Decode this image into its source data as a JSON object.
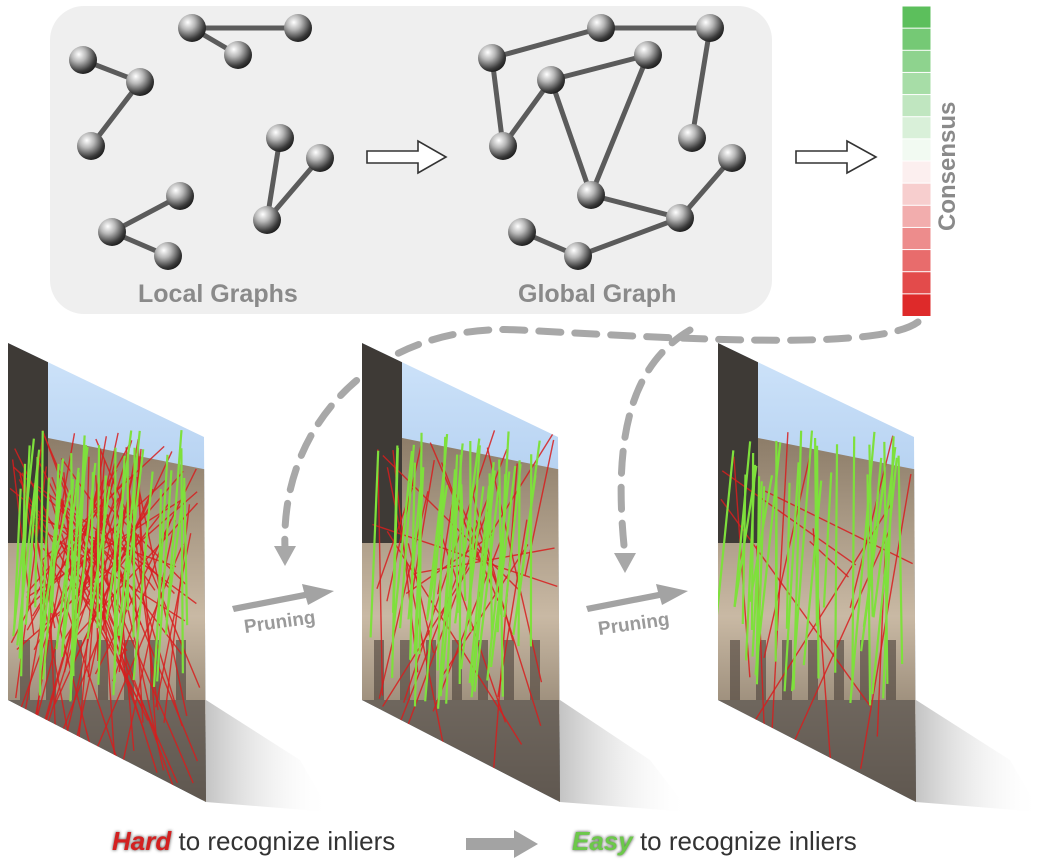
{
  "labels": {
    "local_graphs": "Local Graphs",
    "global_graph": "Global Graph",
    "consensus": "Consensus",
    "pruning_1": "Pruning",
    "pruning_2": "Pruning"
  },
  "caption": {
    "hard_word": "Hard",
    "hard_rest": " to recognize inliers",
    "easy_word": "Easy",
    "easy_rest": " to recognize inliers"
  },
  "colors": {
    "panel_bg": "#efefef",
    "edge": "#5b5b5b",
    "inlier": "#7ee03c",
    "outlier": "#d81e1e",
    "consensus_high": "#5cbf5c",
    "consensus_low": "#de2a2a",
    "arrow_gray": "#a6a6a6"
  },
  "icons": {
    "flow_arrow": "hollow-right-arrow-icon",
    "node": "sphere-node-icon"
  },
  "images": [
    {
      "name": "match-image-dense",
      "inliers": 40,
      "outliers": 90
    },
    {
      "name": "match-image-pruned",
      "inliers": 40,
      "outliers": 30
    },
    {
      "name": "match-image-clean",
      "inliers": 34,
      "outliers": 14
    }
  ]
}
